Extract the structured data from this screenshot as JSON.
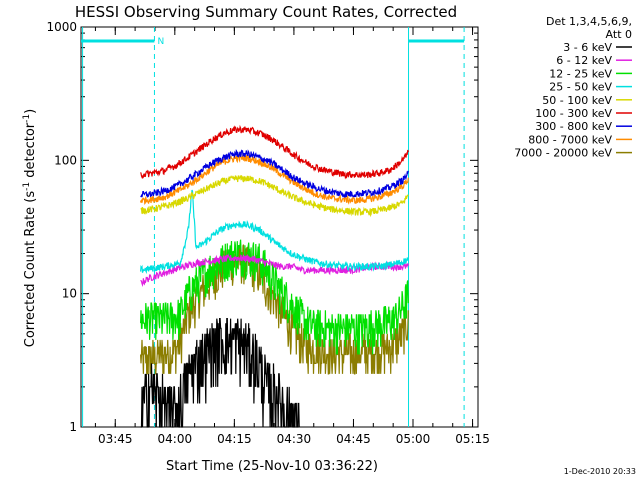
{
  "chart_data": {
    "type": "line",
    "title": "HESSI Observing Summary Count Rates, Corrected",
    "xlabel": "Start Time (25-Nov-10 03:36:22)",
    "ylabel_prefix": "Corrected Count Rate (s",
    "ylabel_sup": "-1",
    "ylabel_mid": " detector",
    "ylabel_sup2": "-1",
    "ylabel_suffix": ")",
    "x_unit": "minutes after 03:36:22",
    "xlim": [
      0,
      100
    ],
    "ylim": [
      1,
      1000
    ],
    "yscale": "log",
    "x_ticks": [
      {
        "x": 8.63,
        "label": "03:45"
      },
      {
        "x": 23.63,
        "label": "04:00"
      },
      {
        "x": 38.63,
        "label": "04:15"
      },
      {
        "x": 53.63,
        "label": "04:30"
      },
      {
        "x": 68.63,
        "label": "04:45"
      },
      {
        "x": 83.63,
        "label": "05:00"
      },
      {
        "x": 98.63,
        "label": "05:15"
      }
    ],
    "y_ticks": [
      {
        "y": 1,
        "label": "1"
      },
      {
        "y": 10,
        "label": "10"
      },
      {
        "y": 100,
        "label": "100"
      },
      {
        "y": 1000,
        "label": "1000"
      }
    ],
    "legend": {
      "header1": "Det 1,3,4,5,6,9,",
      "header2": "Att 0",
      "placement": "right"
    },
    "series": [
      {
        "name": "3 - 6 keV",
        "color": "#000000",
        "points": [
          [
            15,
            1.2
          ],
          [
            17,
            2
          ],
          [
            19,
            1.8
          ],
          [
            21,
            1.4
          ],
          [
            23,
            1.3
          ],
          [
            25,
            1.5
          ],
          [
            27,
            2.5
          ],
          [
            29,
            3
          ],
          [
            31,
            3.5
          ],
          [
            33,
            4
          ],
          [
            35,
            4.5
          ],
          [
            37,
            4.5
          ],
          [
            39,
            4.5
          ],
          [
            41,
            4.3
          ],
          [
            43,
            3.5
          ],
          [
            45,
            3
          ],
          [
            47,
            2
          ],
          [
            49,
            1.8
          ],
          [
            51,
            1.5
          ],
          [
            53,
            1.2
          ],
          [
            55,
            1.0
          ]
        ]
      },
      {
        "name": "6 - 12 keV",
        "color": "#e020e0",
        "points": [
          [
            15,
            12
          ],
          [
            17,
            13
          ],
          [
            20,
            14
          ],
          [
            23,
            15
          ],
          [
            26,
            16
          ],
          [
            29,
            17
          ],
          [
            32,
            17.5
          ],
          [
            35,
            18
          ],
          [
            38,
            18.5
          ],
          [
            41,
            18.5
          ],
          [
            44,
            18
          ],
          [
            47,
            17
          ],
          [
            50,
            16
          ],
          [
            53,
            16
          ],
          [
            56,
            15
          ],
          [
            59,
            15
          ],
          [
            62,
            15
          ],
          [
            65,
            15
          ],
          [
            68,
            15
          ],
          [
            71,
            15.5
          ],
          [
            74,
            16
          ],
          [
            77,
            16
          ],
          [
            80,
            16
          ],
          [
            82.5,
            16
          ]
        ]
      },
      {
        "name": "12 - 25 keV",
        "color": "#00e000",
        "points": [
          [
            15,
            6.5
          ],
          [
            18,
            6.5
          ],
          [
            21,
            6.5
          ],
          [
            23,
            6.5
          ],
          [
            25,
            7
          ],
          [
            27,
            10
          ],
          [
            29,
            12
          ],
          [
            31,
            14
          ],
          [
            33,
            16
          ],
          [
            35,
            17
          ],
          [
            37,
            19
          ],
          [
            39,
            20
          ],
          [
            41,
            20
          ],
          [
            43,
            19
          ],
          [
            45,
            18
          ],
          [
            47,
            15
          ],
          [
            49,
            12
          ],
          [
            51,
            10
          ],
          [
            53,
            8.5
          ],
          [
            55,
            7
          ],
          [
            57,
            6
          ],
          [
            59,
            5.8
          ],
          [
            62,
            5.5
          ],
          [
            65,
            5.5
          ],
          [
            68,
            5.5
          ],
          [
            71,
            5.5
          ],
          [
            74,
            5.8
          ],
          [
            77,
            6
          ],
          [
            79,
            6.5
          ],
          [
            81,
            8
          ],
          [
            82.5,
            10
          ]
        ]
      },
      {
        "name": "25 - 50 keV",
        "color": "#00e0e0",
        "points": [
          [
            15,
            15
          ],
          [
            18,
            15.5
          ],
          [
            21,
            16
          ],
          [
            23,
            16.5
          ],
          [
            25,
            17
          ],
          [
            27,
            30
          ],
          [
            28,
            60
          ],
          [
            29,
            22
          ],
          [
            31,
            24
          ],
          [
            33,
            27
          ],
          [
            35,
            30
          ],
          [
            37,
            32
          ],
          [
            39,
            33
          ],
          [
            41,
            33
          ],
          [
            43,
            32
          ],
          [
            45,
            30
          ],
          [
            47,
            27
          ],
          [
            49,
            24
          ],
          [
            51,
            22
          ],
          [
            53,
            20
          ],
          [
            55,
            19
          ],
          [
            57,
            18
          ],
          [
            60,
            17
          ],
          [
            63,
            16.5
          ],
          [
            66,
            16
          ],
          [
            69,
            16
          ],
          [
            72,
            16
          ],
          [
            75,
            16
          ],
          [
            78,
            16.5
          ],
          [
            80,
            17
          ],
          [
            82.5,
            18
          ]
        ]
      },
      {
        "name": "50 - 100 keV",
        "color": "#d8d800",
        "points": [
          [
            15,
            42
          ],
          [
            18,
            43
          ],
          [
            21,
            45
          ],
          [
            24,
            48
          ],
          [
            27,
            52
          ],
          [
            30,
            58
          ],
          [
            33,
            64
          ],
          [
            36,
            70
          ],
          [
            39,
            73
          ],
          [
            42,
            73
          ],
          [
            45,
            70
          ],
          [
            48,
            64
          ],
          [
            51,
            57
          ],
          [
            54,
            52
          ],
          [
            57,
            48
          ],
          [
            60,
            45
          ],
          [
            63,
            43
          ],
          [
            66,
            42
          ],
          [
            69,
            41
          ],
          [
            72,
            41
          ],
          [
            75,
            42
          ],
          [
            78,
            44
          ],
          [
            81,
            48
          ],
          [
            82.5,
            55
          ]
        ]
      },
      {
        "name": "100 - 300 keV",
        "color": "#e00000",
        "points": [
          [
            15,
            78
          ],
          [
            18,
            80
          ],
          [
            21,
            84
          ],
          [
            24,
            92
          ],
          [
            27,
            105
          ],
          [
            30,
            122
          ],
          [
            33,
            142
          ],
          [
            36,
            160
          ],
          [
            39,
            170
          ],
          [
            42,
            170
          ],
          [
            45,
            160
          ],
          [
            48,
            145
          ],
          [
            51,
            125
          ],
          [
            54,
            108
          ],
          [
            57,
            95
          ],
          [
            60,
            87
          ],
          [
            63,
            82
          ],
          [
            66,
            79
          ],
          [
            69,
            78
          ],
          [
            72,
            78
          ],
          [
            75,
            80
          ],
          [
            78,
            85
          ],
          [
            81,
            100
          ],
          [
            82.5,
            115
          ]
        ]
      },
      {
        "name": "300 - 800 keV",
        "color": "#0000e0",
        "points": [
          [
            15,
            55
          ],
          [
            18,
            56
          ],
          [
            21,
            59
          ],
          [
            24,
            64
          ],
          [
            27,
            72
          ],
          [
            30,
            83
          ],
          [
            33,
            95
          ],
          [
            36,
            105
          ],
          [
            39,
            112
          ],
          [
            42,
            112
          ],
          [
            45,
            105
          ],
          [
            48,
            96
          ],
          [
            51,
            84
          ],
          [
            54,
            73
          ],
          [
            57,
            66
          ],
          [
            60,
            61
          ],
          [
            63,
            58
          ],
          [
            66,
            56
          ],
          [
            69,
            56
          ],
          [
            72,
            57
          ],
          [
            75,
            59
          ],
          [
            78,
            63
          ],
          [
            81,
            71
          ],
          [
            82.5,
            80
          ]
        ]
      },
      {
        "name": "800 - 7000 keV",
        "color": "#ff8c00",
        "points": [
          [
            15,
            50
          ],
          [
            18,
            51
          ],
          [
            21,
            53
          ],
          [
            24,
            58
          ],
          [
            27,
            65
          ],
          [
            30,
            75
          ],
          [
            33,
            87
          ],
          [
            36,
            98
          ],
          [
            39,
            104
          ],
          [
            42,
            104
          ],
          [
            45,
            98
          ],
          [
            48,
            88
          ],
          [
            51,
            77
          ],
          [
            54,
            67
          ],
          [
            57,
            60
          ],
          [
            60,
            55
          ],
          [
            63,
            52
          ],
          [
            66,
            51
          ],
          [
            69,
            50
          ],
          [
            72,
            51
          ],
          [
            75,
            53
          ],
          [
            78,
            57
          ],
          [
            81,
            64
          ],
          [
            82.5,
            72
          ]
        ]
      },
      {
        "name": "7000 - 20000 keV",
        "color": "#8b7d00",
        "points": [
          [
            15,
            3.2
          ],
          [
            18,
            3.3
          ],
          [
            21,
            3.5
          ],
          [
            23,
            3.6
          ],
          [
            25,
            4.5
          ],
          [
            27,
            7
          ],
          [
            29,
            9
          ],
          [
            31,
            11
          ],
          [
            33,
            13
          ],
          [
            35,
            15
          ],
          [
            37,
            16.5
          ],
          [
            39,
            17.5
          ],
          [
            41,
            17.5
          ],
          [
            43,
            16
          ],
          [
            45,
            14
          ],
          [
            47,
            11
          ],
          [
            49,
            9
          ],
          [
            51,
            7
          ],
          [
            53,
            5.5
          ],
          [
            55,
            4.5
          ],
          [
            57,
            4
          ],
          [
            60,
            3.8
          ],
          [
            63,
            3.6
          ],
          [
            66,
            3.6
          ],
          [
            69,
            3.6
          ],
          [
            72,
            3.7
          ],
          [
            75,
            3.8
          ],
          [
            78,
            4
          ],
          [
            80,
            4.5
          ],
          [
            82.5,
            6
          ]
        ]
      }
    ],
    "overlays": {
      "cyan_bar_label": "N",
      "cyan_color": "#00e0e0"
    }
  },
  "footer": {
    "timestamp": "1-Dec-2010 20:33"
  }
}
